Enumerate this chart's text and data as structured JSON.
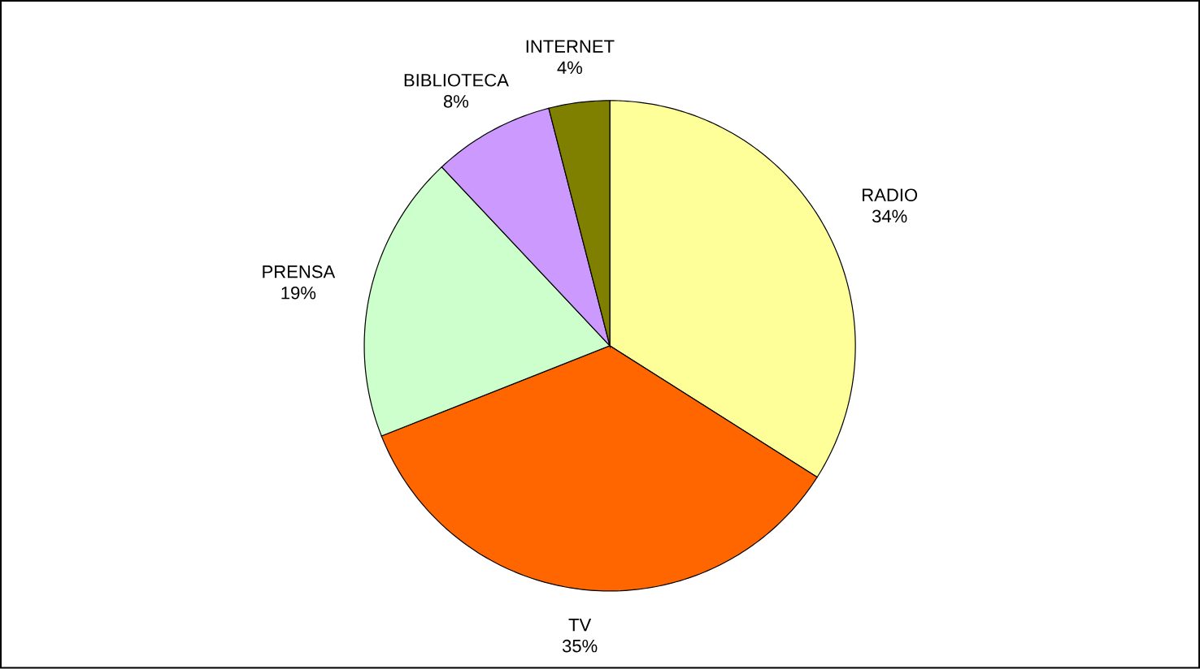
{
  "chart_data": {
    "type": "pie",
    "categories": [
      "RADIO",
      "TV",
      "PRENSA",
      "BIBLIOTECA",
      "INTERNET"
    ],
    "values": [
      34,
      35,
      19,
      8,
      4
    ],
    "value_labels": [
      "34%",
      "35%",
      "19%",
      "8%",
      "4%"
    ],
    "colors": [
      "#ffff99",
      "#ff6600",
      "#ccffcc",
      "#cc99ff",
      "#808000"
    ]
  }
}
